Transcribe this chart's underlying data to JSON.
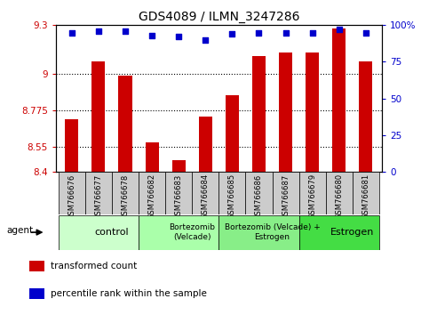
{
  "title": "GDS4089 / ILMN_3247286",
  "samples": [
    "GSM766676",
    "GSM766677",
    "GSM766678",
    "GSM766682",
    "GSM766683",
    "GSM766684",
    "GSM766685",
    "GSM766686",
    "GSM766687",
    "GSM766679",
    "GSM766680",
    "GSM766681"
  ],
  "bar_values": [
    8.72,
    9.08,
    8.99,
    8.58,
    8.47,
    8.74,
    8.87,
    9.11,
    9.13,
    9.13,
    9.28,
    9.08
  ],
  "dot_values": [
    95,
    96,
    96,
    93,
    92,
    90,
    94,
    95,
    95,
    95,
    97,
    95
  ],
  "ylim": [
    8.4,
    9.3
  ],
  "yticks": [
    8.4,
    8.55,
    8.775,
    9.0,
    9.3
  ],
  "ytick_labels": [
    "8.4",
    "8.55",
    "8.775",
    "9",
    "9.3"
  ],
  "y2lim": [
    0,
    100
  ],
  "y2ticks": [
    0,
    25,
    50,
    75,
    100
  ],
  "y2tick_labels": [
    "0",
    "25",
    "50",
    "75",
    "100%"
  ],
  "hlines": [
    9.0,
    8.775,
    8.55
  ],
  "bar_color": "#cc0000",
  "dot_color": "#0000cc",
  "bar_bottom": 8.4,
  "groups": [
    {
      "label": "control",
      "start": 0,
      "end": 3,
      "color": "#ccffcc"
    },
    {
      "label": "Bortezomib\n(Velcade)",
      "start": 3,
      "end": 6,
      "color": "#aaffaa"
    },
    {
      "label": "Bortezomib (Velcade) +\nEstrogen",
      "start": 6,
      "end": 9,
      "color": "#88ee88"
    },
    {
      "label": "Estrogen",
      "start": 9,
      "end": 12,
      "color": "#44dd44"
    }
  ],
  "legend_items": [
    {
      "label": "transformed count",
      "color": "#cc0000"
    },
    {
      "label": "percentile rank within the sample",
      "color": "#0000cc"
    }
  ],
  "agent_label": "agent",
  "title_fontsize": 10,
  "tick_fontsize": 7.5,
  "sample_fontsize": 6,
  "left_tick_color": "#cc0000",
  "right_tick_color": "#0000cc",
  "bg_color": "#ffffff"
}
